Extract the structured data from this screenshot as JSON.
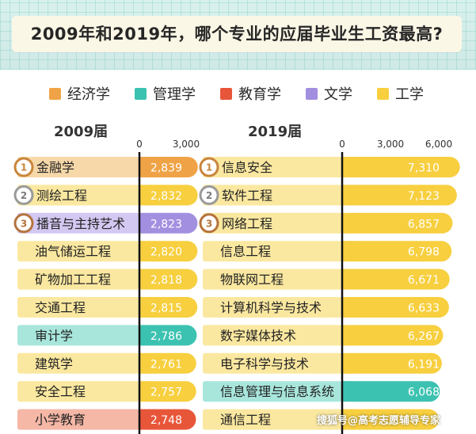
{
  "title": "2009年和2019年，哪个专业的应届毕业生工资最高?",
  "legend": [
    {
      "label": "经济学",
      "color": "#f0a346"
    },
    {
      "label": "管理学",
      "color": "#3cc2b0"
    },
    {
      "label": "教育学",
      "color": "#e8563a"
    },
    {
      "label": "文学",
      "color": "#a38fe0"
    },
    {
      "label": "工学",
      "color": "#f7cf3f"
    }
  ],
  "watermark": "搜狐号@高考志愿辅导专家",
  "chart_data": [
    {
      "type": "bar",
      "title": "2009届",
      "axis_ticks": [
        "0",
        "3,000"
      ],
      "xlim": [
        0,
        3000
      ],
      "categories": [
        "金融学",
        "测绘工程",
        "播音与主持艺术",
        "油气储运工程",
        "矿物加工工程",
        "交通工程",
        "审计学",
        "建筑学",
        "安全工程",
        "小学教育"
      ],
      "values": [
        2839,
        2832,
        2823,
        2820,
        2818,
        2815,
        2786,
        2761,
        2757,
        2748
      ],
      "value_labels": [
        "2,839",
        "2,832",
        "2,823",
        "2,820",
        "2,818",
        "2,815",
        "2,786",
        "2,761",
        "2,757",
        "2,748"
      ],
      "discipline": [
        "经济学",
        "工学",
        "文学",
        "工学",
        "工学",
        "工学",
        "管理学",
        "工学",
        "工学",
        "教育学"
      ],
      "rank_badges": [
        "1",
        "2",
        "3"
      ]
    },
    {
      "type": "bar",
      "title": "2019届",
      "axis_ticks": [
        "0",
        "3,000",
        "6,000"
      ],
      "xlim": [
        0,
        6000
      ],
      "categories": [
        "信息安全",
        "软件工程",
        "网络工程",
        "信息工程",
        "物联网工程",
        "计算机科学与技术",
        "数字媒体技术",
        "电子科学与技术",
        "信息管理与信息系统",
        "通信工程"
      ],
      "values": [
        7310,
        7123,
        6857,
        6798,
        6671,
        6633,
        6267,
        6191,
        6068,
        6000
      ],
      "value_labels": [
        "7,310",
        "7,123",
        "6,857",
        "6,798",
        "6,671",
        "6,633",
        "6,267",
        "6,191",
        "6,068",
        ""
      ],
      "discipline": [
        "工学",
        "工学",
        "工学",
        "工学",
        "工学",
        "工学",
        "工学",
        "工学",
        "管理学",
        "工学"
      ],
      "rank_badges": [
        "1",
        "2",
        "3"
      ]
    }
  ]
}
